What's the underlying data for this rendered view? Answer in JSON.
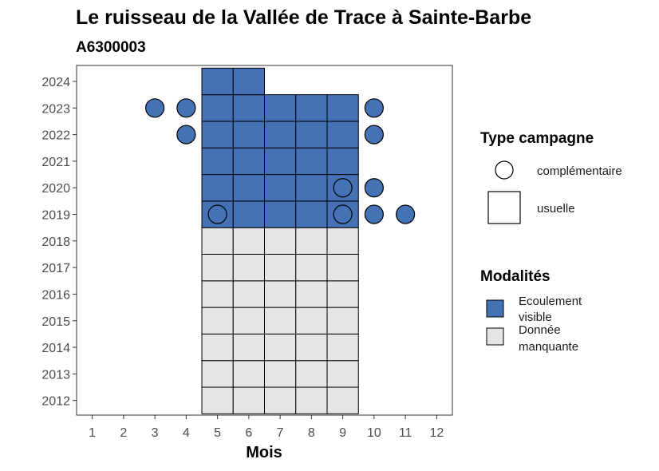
{
  "chart_data": {
    "type": "heatmap",
    "title": "Le ruisseau de la Vallée de Trace à Sainte-Barbe",
    "subtitle": "A6300003",
    "xlabel": "Mois",
    "ylabel": "",
    "x_ticks": [
      "1",
      "2",
      "3",
      "4",
      "5",
      "6",
      "7",
      "8",
      "9",
      "10",
      "11",
      "12"
    ],
    "y_ticks": [
      "2012",
      "2013",
      "2014",
      "2015",
      "2016",
      "2017",
      "2018",
      "2019",
      "2020",
      "2021",
      "2022",
      "2023",
      "2024"
    ],
    "xlim": [
      0.5,
      12.5
    ],
    "ylim": [
      2011.45,
      2024.6
    ],
    "colors": {
      "ecoulement_visible": "#4472b5",
      "donnee_manquante": "#e5e5e5",
      "grid_stroke": "#000000",
      "panel_border": "#333333",
      "tick_color": "#4d4d4d"
    },
    "usuelle_cells": [
      {
        "month": 5,
        "year": 2012,
        "modalite": "Donnée manquante"
      },
      {
        "month": 6,
        "year": 2012,
        "modalite": "Donnée manquante"
      },
      {
        "month": 7,
        "year": 2012,
        "modalite": "Donnée manquante"
      },
      {
        "month": 8,
        "year": 2012,
        "modalite": "Donnée manquante"
      },
      {
        "month": 9,
        "year": 2012,
        "modalite": "Donnée manquante"
      },
      {
        "month": 5,
        "year": 2013,
        "modalite": "Donnée manquante"
      },
      {
        "month": 6,
        "year": 2013,
        "modalite": "Donnée manquante"
      },
      {
        "month": 7,
        "year": 2013,
        "modalite": "Donnée manquante"
      },
      {
        "month": 8,
        "year": 2013,
        "modalite": "Donnée manquante"
      },
      {
        "month": 9,
        "year": 2013,
        "modalite": "Donnée manquante"
      },
      {
        "month": 5,
        "year": 2014,
        "modalite": "Donnée manquante"
      },
      {
        "month": 6,
        "year": 2014,
        "modalite": "Donnée manquante"
      },
      {
        "month": 7,
        "year": 2014,
        "modalite": "Donnée manquante"
      },
      {
        "month": 8,
        "year": 2014,
        "modalite": "Donnée manquante"
      },
      {
        "month": 9,
        "year": 2014,
        "modalite": "Donnée manquante"
      },
      {
        "month": 5,
        "year": 2015,
        "modalite": "Donnée manquante"
      },
      {
        "month": 6,
        "year": 2015,
        "modalite": "Donnée manquante"
      },
      {
        "month": 7,
        "year": 2015,
        "modalite": "Donnée manquante"
      },
      {
        "month": 8,
        "year": 2015,
        "modalite": "Donnée manquante"
      },
      {
        "month": 9,
        "year": 2015,
        "modalite": "Donnée manquante"
      },
      {
        "month": 5,
        "year": 2016,
        "modalite": "Donnée manquante"
      },
      {
        "month": 6,
        "year": 2016,
        "modalite": "Donnée manquante"
      },
      {
        "month": 7,
        "year": 2016,
        "modalite": "Donnée manquante"
      },
      {
        "month": 8,
        "year": 2016,
        "modalite": "Donnée manquante"
      },
      {
        "month": 9,
        "year": 2016,
        "modalite": "Donnée manquante"
      },
      {
        "month": 5,
        "year": 2017,
        "modalite": "Donnée manquante"
      },
      {
        "month": 6,
        "year": 2017,
        "modalite": "Donnée manquante"
      },
      {
        "month": 7,
        "year": 2017,
        "modalite": "Donnée manquante"
      },
      {
        "month": 8,
        "year": 2017,
        "modalite": "Donnée manquante"
      },
      {
        "month": 9,
        "year": 2017,
        "modalite": "Donnée manquante"
      },
      {
        "month": 5,
        "year": 2018,
        "modalite": "Donnée manquante"
      },
      {
        "month": 6,
        "year": 2018,
        "modalite": "Donnée manquante"
      },
      {
        "month": 7,
        "year": 2018,
        "modalite": "Donnée manquante"
      },
      {
        "month": 8,
        "year": 2018,
        "modalite": "Donnée manquante"
      },
      {
        "month": 9,
        "year": 2018,
        "modalite": "Donnée manquante"
      },
      {
        "month": 5,
        "year": 2019,
        "modalite": "Ecoulement visible"
      },
      {
        "month": 6,
        "year": 2019,
        "modalite": "Ecoulement visible"
      },
      {
        "month": 7,
        "year": 2019,
        "modalite": "Ecoulement visible"
      },
      {
        "month": 8,
        "year": 2019,
        "modalite": "Ecoulement visible"
      },
      {
        "month": 9,
        "year": 2019,
        "modalite": "Ecoulement visible"
      },
      {
        "month": 5,
        "year": 2020,
        "modalite": "Ecoulement visible"
      },
      {
        "month": 6,
        "year": 2020,
        "modalite": "Ecoulement visible"
      },
      {
        "month": 7,
        "year": 2020,
        "modalite": "Ecoulement visible"
      },
      {
        "month": 8,
        "year": 2020,
        "modalite": "Ecoulement visible"
      },
      {
        "month": 9,
        "year": 2020,
        "modalite": "Ecoulement visible"
      },
      {
        "month": 5,
        "year": 2021,
        "modalite": "Ecoulement visible"
      },
      {
        "month": 6,
        "year": 2021,
        "modalite": "Ecoulement visible"
      },
      {
        "month": 7,
        "year": 2021,
        "modalite": "Ecoulement visible"
      },
      {
        "month": 8,
        "year": 2021,
        "modalite": "Ecoulement visible"
      },
      {
        "month": 9,
        "year": 2021,
        "modalite": "Ecoulement visible"
      },
      {
        "month": 5,
        "year": 2022,
        "modalite": "Ecoulement visible"
      },
      {
        "month": 6,
        "year": 2022,
        "modalite": "Ecoulement visible"
      },
      {
        "month": 7,
        "year": 2022,
        "modalite": "Ecoulement visible"
      },
      {
        "month": 8,
        "year": 2022,
        "modalite": "Ecoulement visible"
      },
      {
        "month": 9,
        "year": 2022,
        "modalite": "Ecoulement visible"
      },
      {
        "month": 5,
        "year": 2023,
        "modalite": "Ecoulement visible"
      },
      {
        "month": 6,
        "year": 2023,
        "modalite": "Ecoulement visible"
      },
      {
        "month": 7,
        "year": 2023,
        "modalite": "Ecoulement visible"
      },
      {
        "month": 8,
        "year": 2023,
        "modalite": "Ecoulement visible"
      },
      {
        "month": 9,
        "year": 2023,
        "modalite": "Ecoulement visible"
      },
      {
        "month": 5,
        "year": 2024,
        "modalite": "Ecoulement visible"
      },
      {
        "month": 6,
        "year": 2024,
        "modalite": "Ecoulement visible"
      }
    ],
    "complementaire_points": [
      {
        "month": 3,
        "year": 2023,
        "modalite": "Ecoulement visible"
      },
      {
        "month": 4,
        "year": 2023,
        "modalite": "Ecoulement visible"
      },
      {
        "month": 10,
        "year": 2023,
        "modalite": "Ecoulement visible"
      },
      {
        "month": 4,
        "year": 2022,
        "modalite": "Ecoulement visible"
      },
      {
        "month": 10,
        "year": 2022,
        "modalite": "Ecoulement visible"
      },
      {
        "month": 9,
        "year": 2020,
        "modalite": "Ecoulement visible"
      },
      {
        "month": 10,
        "year": 2020,
        "modalite": "Ecoulement visible"
      },
      {
        "month": 5,
        "year": 2019,
        "modalite": "Ecoulement visible"
      },
      {
        "month": 9,
        "year": 2019,
        "modalite": "Ecoulement visible"
      },
      {
        "month": 10,
        "year": 2019,
        "modalite": "Ecoulement visible"
      },
      {
        "month": 11,
        "year": 2019,
        "modalite": "Ecoulement visible"
      }
    ],
    "legend": {
      "shape_title": "Type campagne",
      "shape_items": [
        {
          "shape": "circle",
          "label": "complémentaire"
        },
        {
          "shape": "square",
          "label": "usuelle"
        }
      ],
      "fill_title": "Modalités",
      "fill_items": [
        {
          "label_lines": [
            "Ecoulement",
            "visible"
          ],
          "color": "#4472b5"
        },
        {
          "label_lines": [
            "Donnée",
            "manquante"
          ],
          "color": "#e5e5e5"
        }
      ],
      "position": "right"
    }
  }
}
